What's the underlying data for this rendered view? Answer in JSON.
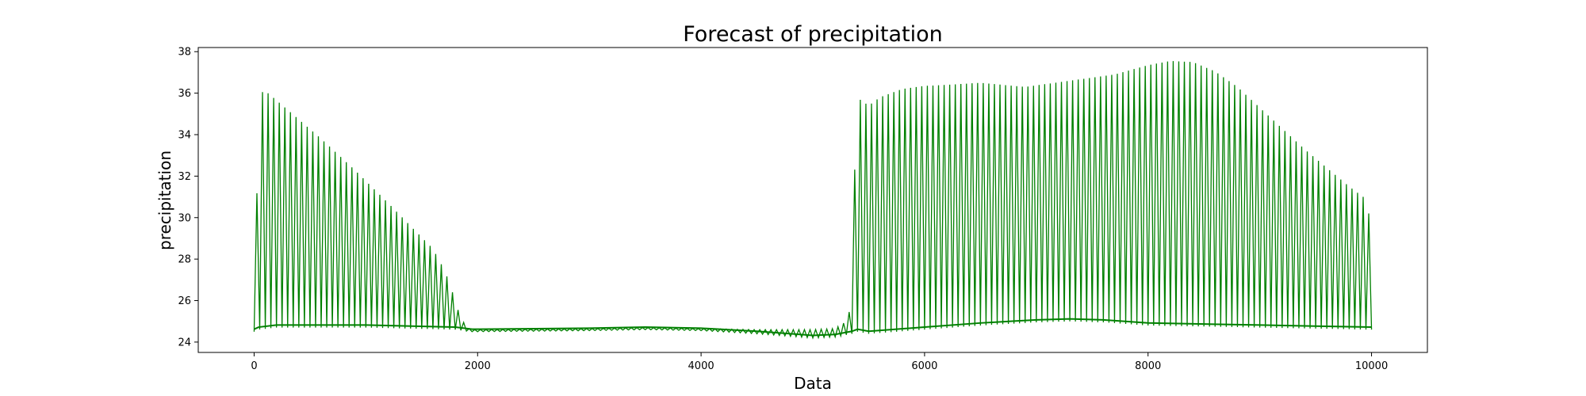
{
  "chart_data": {
    "type": "line",
    "title": "Forecast of precipitation",
    "xlabel": "Data",
    "ylabel": "precipitation",
    "xlim": [
      -500,
      10500
    ],
    "ylim": [
      23.5,
      38.2
    ],
    "x_ticks": [
      0,
      2000,
      4000,
      6000,
      8000,
      10000
    ],
    "y_ticks": [
      24,
      26,
      28,
      30,
      32,
      34,
      36,
      38
    ],
    "grid": false,
    "legend": "none",
    "series_color": "#008000",
    "oscillation_period": 50,
    "series": [
      {
        "upper_envelope": {
          "x": [
            0,
            40,
            80,
            300,
            600,
            900,
            1200,
            1400,
            1600,
            1700,
            1760,
            1800,
            1850,
            1900,
            1950,
            2000,
            3000,
            3500,
            4000,
            4500,
            5000,
            5200,
            5300,
            5350,
            5380,
            5420,
            5500,
            5600,
            5800,
            6000,
            6200,
            6500,
            6900,
            7300,
            7700,
            8000,
            8200,
            8400,
            8600,
            8800,
            9000,
            9200,
            9400,
            9600,
            9800,
            9950,
            10000
          ],
          "y": [
            24.8,
            35.0,
            36.2,
            35.2,
            33.8,
            32.3,
            30.7,
            29.6,
            28.5,
            27.5,
            26.7,
            25.9,
            25.2,
            24.7,
            24.6,
            24.6,
            24.65,
            24.7,
            24.65,
            24.6,
            24.6,
            24.65,
            25.0,
            25.9,
            33.6,
            35.7,
            35.4,
            35.8,
            36.2,
            36.35,
            36.4,
            36.5,
            36.3,
            36.6,
            36.9,
            37.35,
            37.55,
            37.5,
            37.05,
            36.3,
            35.3,
            34.3,
            33.3,
            32.4,
            31.5,
            30.9,
            29.5
          ]
        },
        "lower_envelope": {
          "x": [
            0,
            40,
            200,
            1000,
            1800,
            1950,
            2000,
            3000,
            3500,
            4000,
            4500,
            5000,
            5200,
            5350,
            5400,
            5500,
            6000,
            6500,
            7000,
            7300,
            7600,
            8000,
            9000,
            10000
          ],
          "y": [
            24.5,
            24.6,
            24.7,
            24.7,
            24.6,
            24.5,
            24.5,
            24.55,
            24.6,
            24.55,
            24.4,
            24.2,
            24.25,
            24.4,
            24.5,
            24.4,
            24.6,
            24.8,
            24.95,
            25.0,
            24.95,
            24.8,
            24.7,
            24.6
          ]
        }
      }
    ]
  }
}
